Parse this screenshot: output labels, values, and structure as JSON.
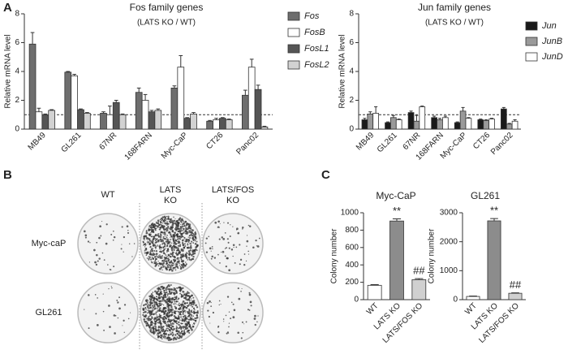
{
  "panel_labels": [
    "A",
    "B",
    "C"
  ],
  "panel_b": {
    "columns": [
      "WT",
      "LATS\nKO",
      "LATS/FOS\nKO"
    ],
    "rows": [
      "Myc-caP",
      "GL261"
    ]
  },
  "chart_data": [
    {
      "type": "bar",
      "title": "Fos family genes",
      "subtitle": "(LATS KO / WT)",
      "y_label": "Relative mRNA level",
      "categories": [
        "MB49",
        "GL261",
        "67NR",
        "168FARN",
        "Myc-CaP",
        "CT26",
        "Panc02"
      ],
      "series": [
        {
          "name": "Fos",
          "color": "#6e6e6e",
          "values": [
            5.9,
            3.95,
            1.1,
            2.55,
            2.85,
            0.55,
            2.35
          ],
          "errors": [
            0.8,
            0.05,
            0.1,
            0.3,
            0.15,
            0.05,
            0.35
          ]
        },
        {
          "name": "FosB",
          "color": "#ffffff",
          "values": [
            1.2,
            3.7,
            1.0,
            2.0,
            4.3,
            0.65,
            4.3
          ],
          "errors": [
            0.25,
            0.1,
            0.6,
            0.4,
            0.8,
            0.1,
            0.55
          ]
        },
        {
          "name": "FosL1",
          "color": "#555555",
          "values": [
            1.0,
            1.35,
            1.85,
            1.2,
            0.75,
            0.75,
            2.75
          ],
          "errors": [
            0.05,
            0.05,
            0.15,
            0.1,
            0.05,
            0.05,
            0.3
          ]
        },
        {
          "name": "FosL2",
          "color": "#d2d2d2",
          "values": [
            1.3,
            1.1,
            1.0,
            1.3,
            1.05,
            0.65,
            0.15
          ],
          "errors": [
            0.05,
            0.05,
            0.05,
            0.1,
            0.1,
            0.05,
            0.05
          ]
        }
      ],
      "ylim": [
        0,
        8
      ],
      "yticks": [
        0,
        2,
        4,
        6,
        8
      ],
      "ref_line": 1
    },
    {
      "type": "bar",
      "title": "Jun family genes",
      "subtitle": "(LATS KO / WT)",
      "y_label": "Relative mRNA level",
      "categories": [
        "MB49",
        "GL261",
        "67NR",
        "168FARN",
        "Myc-CaP",
        "CT26",
        "Panc02"
      ],
      "series": [
        {
          "name": "Jun",
          "color": "#1a1a1a",
          "values": [
            0.65,
            0.45,
            1.15,
            0.8,
            0.45,
            0.65,
            1.4
          ],
          "errors": [
            0.1,
            0.05,
            0.1,
            0.1,
            0.05,
            0.05,
            0.1
          ]
        },
        {
          "name": "JunB",
          "color": "#9a9a9a",
          "values": [
            1.05,
            0.8,
            0.55,
            0.65,
            1.25,
            0.6,
            0.35
          ],
          "errors": [
            0.15,
            0.15,
            0.4,
            0.1,
            0.25,
            0.05,
            0.05
          ]
        },
        {
          "name": "JunD",
          "color": "#ffffff",
          "values": [
            1.1,
            0.65,
            1.55,
            0.8,
            0.75,
            0.7,
            0.55
          ],
          "errors": [
            0.45,
            0.05,
            0.05,
            0.1,
            0.05,
            0.05,
            0.1
          ]
        }
      ],
      "ylim": [
        0,
        8
      ],
      "yticks": [
        0,
        2,
        4,
        6,
        8
      ],
      "ref_line": 1
    },
    {
      "type": "bar",
      "title": "Myc-CaP",
      "y_label": "Colony number",
      "categories": [
        "WT",
        "LATS KO",
        "LATS/FOS KO"
      ],
      "values": [
        165,
        905,
        230
      ],
      "errors": [
        8,
        25,
        12
      ],
      "colors": [
        "#ffffff",
        "#8c8c8c",
        "#d0d0d0"
      ],
      "bar_annotations": [
        null,
        "**",
        "##"
      ],
      "ylim": [
        0,
        1000
      ],
      "yticks": [
        0,
        200,
        400,
        600,
        800,
        1000
      ]
    },
    {
      "type": "bar",
      "title": "GL261",
      "y_label": "Colony number",
      "categories": [
        "WT",
        "LATS KO",
        "LATS/FOS KO"
      ],
      "values": [
        110,
        2720,
        220
      ],
      "errors": [
        15,
        80,
        15
      ],
      "colors": [
        "#ffffff",
        "#8c8c8c",
        "#d0d0d0"
      ],
      "bar_annotations": [
        null,
        "**",
        "##"
      ],
      "ylim": [
        0,
        3000
      ],
      "yticks": [
        0,
        1000,
        2000,
        3000
      ]
    }
  ]
}
